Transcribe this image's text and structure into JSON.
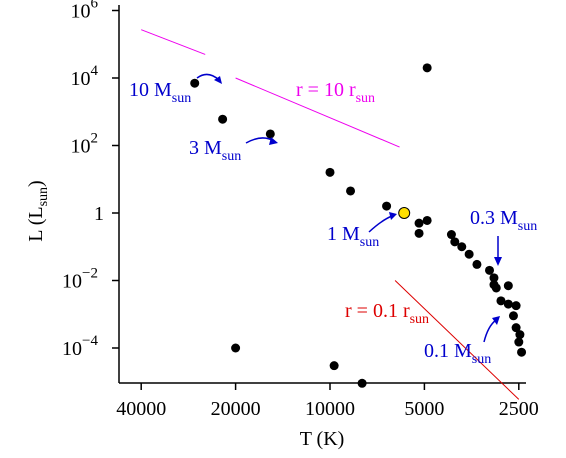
{
  "chart_data": {
    "type": "scatter",
    "xlabel": "T (K)",
    "ylabel": "L (L",
    "ylabel_sub": "sun",
    "ylabel_close": ")",
    "x_scale": "log",
    "x_reversed": true,
    "y_scale": "log",
    "xlim": [
      50000,
      2300
    ],
    "ylim": [
      1e-05,
      1000000.0
    ],
    "x_ticks": [
      {
        "value": 40000,
        "label": "40000"
      },
      {
        "value": 20000,
        "label": "20000"
      },
      {
        "value": 10000,
        "label": "10000"
      },
      {
        "value": 5000,
        "label": "5000"
      },
      {
        "value": 2500,
        "label": "2500"
      }
    ],
    "y_ticks": [
      {
        "value": 0.0001,
        "base": "10",
        "exp": "−4"
      },
      {
        "value": 0.01,
        "base": "10",
        "exp": "−2"
      },
      {
        "value": 1,
        "base": "1",
        "exp": ""
      },
      {
        "value": 100,
        "base": "10",
        "exp": "2"
      },
      {
        "value": 10000.0,
        "base": "10",
        "exp": "4"
      },
      {
        "value": 1000000.0,
        "base": "10",
        "exp": "6"
      }
    ],
    "grid": false,
    "stars": [
      {
        "T": 27000,
        "L": 7000
      },
      {
        "T": 22000,
        "L": 600
      },
      {
        "T": 15500,
        "L": 220
      },
      {
        "T": 10000,
        "L": 16
      },
      {
        "T": 8600,
        "L": 4.5
      },
      {
        "T": 6600,
        "L": 1.6
      },
      {
        "T": 5200,
        "L": 0.5
      },
      {
        "T": 4900,
        "L": 0.6
      },
      {
        "T": 5200,
        "L": 0.25
      },
      {
        "T": 4100,
        "L": 0.23
      },
      {
        "T": 3800,
        "L": 0.1
      },
      {
        "T": 3600,
        "L": 0.06
      },
      {
        "T": 4000,
        "L": 0.14
      },
      {
        "T": 3400,
        "L": 0.03
      },
      {
        "T": 3100,
        "L": 0.02
      },
      {
        "T": 3000,
        "L": 0.012
      },
      {
        "T": 2950,
        "L": 0.006
      },
      {
        "T": 3000,
        "L": 0.0075
      },
      {
        "T": 2700,
        "L": 0.007
      },
      {
        "T": 2850,
        "L": 0.0025
      },
      {
        "T": 2700,
        "L": 0.002
      },
      {
        "T": 2550,
        "L": 0.0018
      },
      {
        "T": 2600,
        "L": 0.0009
      },
      {
        "T": 2550,
        "L": 0.0004
      },
      {
        "T": 2480,
        "L": 0.00025
      },
      {
        "T": 2500,
        "L": 0.00015
      },
      {
        "T": 2450,
        "L": 7.5e-05
      },
      {
        "T": 4900,
        "L": 20000
      },
      {
        "T": 20000,
        "L": 0.0001
      },
      {
        "T": 9700,
        "L": 3e-05
      },
      {
        "T": 7900,
        "L": 9e-06
      }
    ],
    "sun": {
      "T": 5800,
      "L": 1,
      "color": "#ffe000"
    },
    "lines": [
      {
        "label": "r = 10 r",
        "sub": "sun",
        "color": "#ee00ee",
        "segments": [
          [
            {
              "T": 40000,
              "L": 270000
            },
            {
              "T": 25000,
              "L": 50000
            }
          ],
          [
            {
              "T": 20000,
              "L": 10000
            },
            {
              "T": 6000,
              "L": 90
            }
          ]
        ]
      },
      {
        "label": "r = 0.1 r",
        "sub": "sun",
        "color": "#dd0000",
        "segments": [
          [
            {
              "T": 6200,
              "L": 0.01
            },
            {
              "T": 2500,
              "L": 3e-06
            }
          ]
        ]
      }
    ],
    "annotations": [
      {
        "label": "10 M",
        "sub": "sun",
        "color": "#0000cc"
      },
      {
        "label": "3 M",
        "sub": "sun",
        "color": "#0000cc"
      },
      {
        "label": "1 M",
        "sub": "sun",
        "color": "#0000cc"
      },
      {
        "label": "0.3 M",
        "sub": "sun",
        "color": "#0000cc"
      },
      {
        "label": "0.1 M",
        "sub": "sun",
        "color": "#0000cc"
      }
    ]
  }
}
